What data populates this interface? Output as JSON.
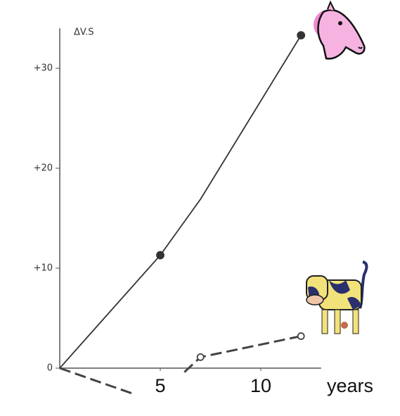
{
  "chart_data": {
    "type": "line",
    "y_label": "ΔV.S",
    "x_label": "years",
    "xlim": [
      0,
      13
    ],
    "ylim": [
      -3,
      34
    ],
    "xticks": [
      5,
      10
    ],
    "yticks": [
      {
        "value": 0,
        "label": "0"
      },
      {
        "value": 10,
        "label": "+10"
      },
      {
        "value": 20,
        "label": "+20"
      },
      {
        "value": 30,
        "label": "+30"
      }
    ],
    "series": [
      {
        "color": "#333333",
        "dash": false,
        "marker": "filled",
        "x": [
          0,
          5,
          7,
          12
        ],
        "values": [
          0,
          11.3,
          16.9,
          33.3
        ],
        "markers": [
          false,
          true,
          false,
          true
        ]
      },
      {
        "color": "#444444",
        "dash": true,
        "marker": "open",
        "x": [
          0,
          3.7,
          5,
          6.2,
          7,
          12
        ],
        "values": [
          0,
          -2.6,
          null,
          -0.4,
          1.1,
          3.2
        ],
        "markers": [
          false,
          false,
          false,
          false,
          true,
          true
        ]
      }
    ]
  }
}
